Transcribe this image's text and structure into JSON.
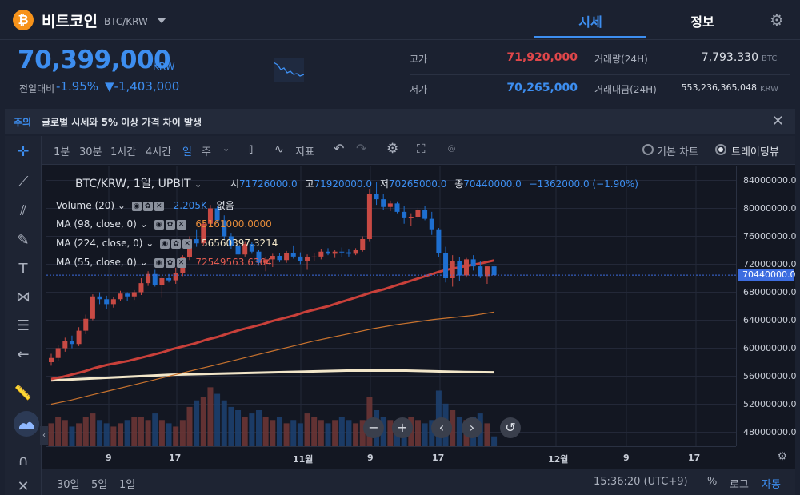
{
  "header": {
    "coin_symbol": "₿",
    "coin_name": "비트코인",
    "pair": "BTC/KRW",
    "tabs": [
      {
        "label": "시세"
      },
      {
        "label": "정보"
      }
    ]
  },
  "price": {
    "value": "70,399,000",
    "currency": "KRW",
    "change_label": "전일대비",
    "change_pct": "-1.95%",
    "change_abs": "▼-1,403,000"
  },
  "stats": {
    "high_label": "고가",
    "high": "71,920,000",
    "low_label": "저가",
    "low": "70,265,000",
    "volume_label": "거래량(24H)",
    "volume": "7,793.330",
    "volume_unit": "BTC",
    "value_label": "거래대금(24H)",
    "value": "553,236,365,048",
    "value_unit": "KRW"
  },
  "notice": {
    "tag": "주의",
    "text": "글로벌 시세와 5% 이상 가격 차이 발생"
  },
  "toolbar": {
    "intervals": [
      "1분",
      "30분",
      "1시간",
      "4시간",
      "일",
      "주"
    ],
    "active_interval": "일",
    "indicator_label": "지표",
    "basic_chart": "기본 차트",
    "tradingview": "트레이딩뷰"
  },
  "chart_legend": {
    "title": "BTC/KRW, 1일, UPBIT",
    "o_label": "시",
    "o": "71726000.0",
    "h_label": "고",
    "h": "71920000.0",
    "l_label": "저",
    "l": "70265000.0",
    "c_label": "종",
    "c": "70440000.0",
    "chg": "−1362000.0 (−1.90%)",
    "indicators": [
      {
        "name": "Volume (20)",
        "value": "2.205K",
        "extra": "없음",
        "color": "#3d8ef0"
      },
      {
        "name": "MA (98, close, 0)",
        "value": "65161000.0000",
        "color": "#e58b3a"
      },
      {
        "name": "MA (224, close, 0)",
        "value": "56560397.3214",
        "color": "#f2e6c9"
      },
      {
        "name": "MA (55, close, 0)",
        "value": "72549563.6364",
        "color": "#e05a4f"
      }
    ]
  },
  "chart_data": {
    "type": "candlestick",
    "y_ticks": [
      "84000000.0",
      "80000000.0",
      "76000000.0",
      "72000000.0",
      "68000000.0",
      "64000000.0",
      "60000000.0",
      "56000000.0",
      "52000000.0",
      "48000000.0"
    ],
    "ylim": [
      46000000,
      86000000
    ],
    "last_price": "70440000.0",
    "x_ticks": [
      "9",
      "17",
      "11월",
      "9",
      "17",
      "12월",
      "9",
      "17"
    ],
    "candles": [
      [
        58000000,
        59200000,
        57500000,
        58600000
      ],
      [
        58600000,
        60500000,
        58200000,
        60000000
      ],
      [
        60000000,
        61500000,
        59500000,
        61000000
      ],
      [
        61000000,
        61800000,
        60000000,
        60600000
      ],
      [
        60600000,
        63000000,
        60300000,
        62500000
      ],
      [
        62500000,
        64800000,
        62000000,
        64200000
      ],
      [
        64200000,
        67700000,
        64000000,
        67400000
      ],
      [
        67400000,
        68000000,
        66300000,
        67000000
      ],
      [
        67000000,
        67500000,
        65600000,
        66300000
      ],
      [
        66300000,
        67300000,
        65800000,
        67000000
      ],
      [
        67000000,
        68200000,
        66700000,
        67800000
      ],
      [
        67800000,
        68000000,
        66800000,
        67400000
      ],
      [
        67400000,
        68300000,
        66900000,
        68000000
      ],
      [
        68000000,
        70000000,
        67600000,
        69300000
      ],
      [
        69300000,
        71000000,
        68900000,
        70600000
      ],
      [
        70600000,
        71200000,
        68800000,
        69000000
      ],
      [
        69000000,
        70300000,
        67200000,
        70000000
      ],
      [
        70000000,
        70600000,
        69400000,
        69700000
      ],
      [
        69700000,
        71500000,
        69200000,
        70700000
      ],
      [
        70700000,
        73300000,
        70300000,
        73000000
      ],
      [
        73000000,
        76000000,
        72600000,
        75600000
      ],
      [
        75600000,
        77000000,
        74500000,
        75000000
      ],
      [
        75000000,
        78200000,
        74700000,
        77800000
      ],
      [
        77800000,
        80500000,
        77300000,
        80000000
      ],
      [
        80000000,
        80400000,
        78000000,
        78300000
      ],
      [
        78300000,
        79000000,
        75500000,
        76000000
      ],
      [
        76000000,
        76500000,
        74200000,
        74700000
      ],
      [
        74700000,
        75000000,
        73000000,
        73400000
      ],
      [
        73400000,
        75300000,
        73100000,
        74900000
      ],
      [
        74900000,
        75200000,
        73500000,
        73800000
      ],
      [
        73800000,
        74000000,
        71800000,
        72200000
      ],
      [
        72200000,
        73000000,
        71000000,
        72700000
      ],
      [
        72700000,
        73500000,
        71600000,
        73200000
      ],
      [
        73200000,
        73600000,
        72300000,
        72600000
      ],
      [
        72600000,
        73900000,
        72200000,
        73600000
      ],
      [
        73600000,
        74700000,
        72800000,
        73100000
      ],
      [
        73100000,
        73700000,
        72000000,
        72500000
      ],
      [
        72500000,
        73400000,
        71200000,
        73000000
      ],
      [
        73000000,
        73600000,
        72400000,
        73100000
      ],
      [
        73100000,
        74200000,
        72700000,
        73800000
      ],
      [
        73800000,
        74300000,
        73300000,
        73500000
      ],
      [
        73500000,
        74000000,
        72900000,
        73800000
      ],
      [
        73800000,
        74400000,
        73000000,
        73700000
      ],
      [
        73700000,
        74100000,
        73100000,
        73500000
      ],
      [
        73500000,
        74300000,
        73300000,
        74000000
      ],
      [
        74000000,
        76000000,
        73800000,
        75600000
      ],
      [
        75600000,
        82800000,
        75300000,
        82000000
      ],
      [
        82000000,
        83800000,
        80500000,
        81300000
      ],
      [
        81300000,
        82000000,
        79800000,
        80200000
      ],
      [
        80200000,
        81100000,
        79600000,
        80700000
      ],
      [
        80700000,
        81000000,
        79300000,
        79500000
      ],
      [
        79500000,
        80300000,
        77800000,
        78700000
      ],
      [
        78700000,
        79300000,
        77500000,
        78800000
      ],
      [
        78800000,
        80100000,
        78500000,
        79800000
      ],
      [
        79800000,
        80300000,
        78300000,
        78500000
      ],
      [
        78500000,
        79500000,
        76200000,
        77000000
      ],
      [
        77000000,
        77200000,
        73000000,
        73600000
      ],
      [
        73600000,
        74500000,
        69400000,
        70000000
      ],
      [
        70000000,
        73300000,
        68800000,
        72500000
      ],
      [
        72500000,
        73000000,
        69600000,
        70400000
      ],
      [
        70400000,
        72900000,
        70100000,
        72700000
      ],
      [
        72700000,
        73300000,
        71100000,
        71700000
      ],
      [
        71700000,
        72500000,
        70000000,
        70300000
      ],
      [
        70300000,
        71700000,
        69200000,
        71700000
      ],
      [
        71700000,
        71900000,
        70265000,
        70440000
      ]
    ],
    "ma55": [
      55600000,
      55900000,
      56300000,
      56700000,
      57200000,
      57600000,
      57900000,
      58200000,
      58600000,
      59000000,
      59400000,
      59900000,
      60300000,
      60700000,
      61200000,
      61600000,
      62100000,
      62600000,
      63000000,
      63400000,
      63900000,
      64300000,
      64700000,
      65200000,
      65600000,
      66000000,
      66500000,
      67000000,
      67500000,
      68000000,
      68400000,
      68900000,
      69400000,
      69900000,
      70400000,
      70900000,
      71300000,
      71600000,
      71900000,
      72200000,
      72549563
    ],
    "ma98": [
      52000000,
      52600000,
      53300000,
      54000000,
      54700000,
      55400000,
      56100000,
      56800000,
      57500000,
      58200000,
      58900000,
      59600000,
      60300000,
      61000000,
      61600000,
      62200000,
      62800000,
      63300000,
      63700000,
      64100000,
      64400000,
      64700000,
      65161000
    ],
    "ma224": [
      55400000,
      55600000,
      55800000,
      56000000,
      56200000,
      56300000,
      56400000,
      56500000,
      56600000,
      56700000,
      56800000,
      56800000,
      56800000,
      56700000,
      56600000,
      56560397
    ],
    "volume": [
      0.7,
      0.9,
      0.8,
      0.6,
      0.7,
      0.9,
      1.0,
      0.8,
      0.7,
      0.6,
      0.7,
      0.8,
      0.9,
      0.9,
      0.8,
      1.0,
      0.8,
      0.7,
      0.6,
      0.8,
      1.2,
      1.4,
      1.5,
      1.8,
      1.6,
      1.4,
      1.2,
      1.1,
      0.9,
      1.0,
      1.1,
      0.9,
      0.8,
      0.9,
      0.7,
      0.8,
      0.7,
      1.0,
      0.9,
      0.8,
      0.7,
      0.8,
      0.9,
      0.8,
      0.7,
      0.8,
      1.5,
      1.1,
      0.9,
      0.8,
      0.7,
      0.8,
      0.9,
      0.8,
      0.7,
      0.8,
      1.7,
      1.3,
      1.1,
      0.9,
      0.8,
      0.9,
      1.0,
      0.7,
      0.3
    ]
  },
  "bottom_bar": {
    "ranges": [
      "30일",
      "5일",
      "1일"
    ],
    "time": "15:36:20 (UTC+9)",
    "pct": "%",
    "log": "로그",
    "auto": "자동"
  },
  "colors": {
    "up": "#c84a44",
    "down": "#1e6fd0",
    "accent": "#3d8ef0",
    "high": "#e0474a"
  }
}
